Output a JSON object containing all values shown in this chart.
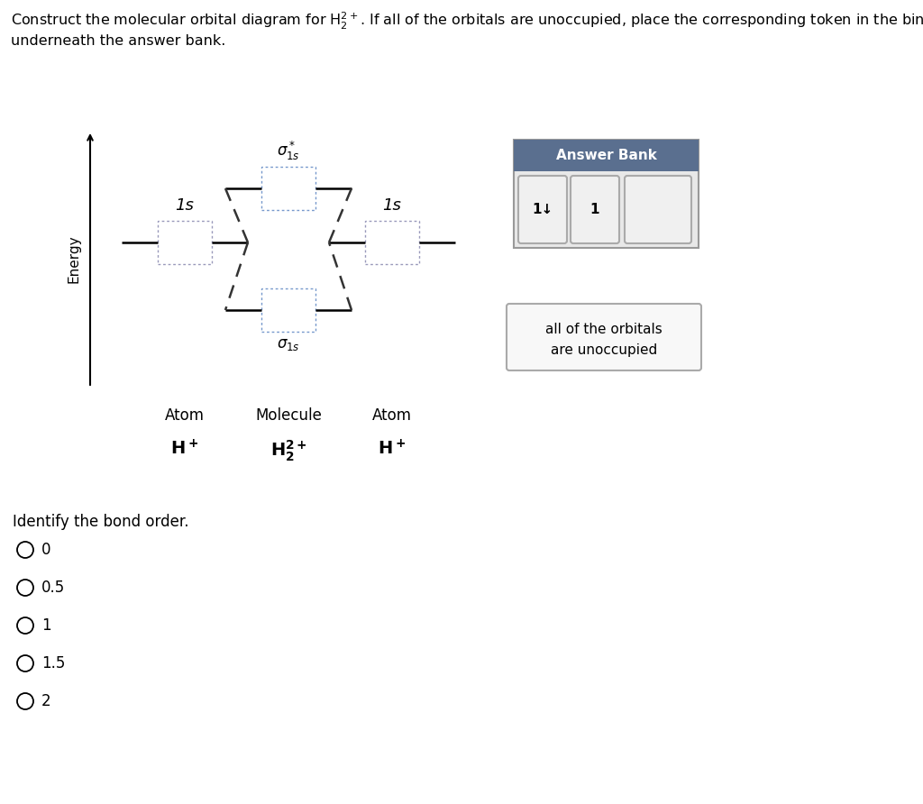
{
  "bg_color": "#ffffff",
  "energy_label": "Energy",
  "atom_label": "Atom",
  "molecule_label": "Molecule",
  "atom_label2": "Atom",
  "sigma_star": "$\\sigma^*_{1s}$",
  "sigma": "$\\sigma_{1s}$",
  "orbital_1s_left": "1s",
  "orbital_1s_right": "1s",
  "answer_bank_title": "Answer Bank",
  "answer_bank_bg": "#5a6f8f",
  "answer_bank_outer_bg": "#e8e8e8",
  "unoccupied_text1": "all of the orbitals",
  "unoccupied_text2": "are unoccupied",
  "bond_order_question": "Identify the bond order.",
  "radio_options": [
    "0",
    "0.5",
    "1",
    "1.5",
    "2"
  ],
  "token1_text": "1↓",
  "token2_text": "1",
  "token3_text": "",
  "orbital_box_color": "#ffffff",
  "orbital_box_edge_atom": "#aaaacc",
  "orbital_box_edge_mol_star": "#aaaacc",
  "orbital_box_edge_mol_bond": "#aaaacc",
  "dashed_line_color": "#444444",
  "line_color": "#000000"
}
